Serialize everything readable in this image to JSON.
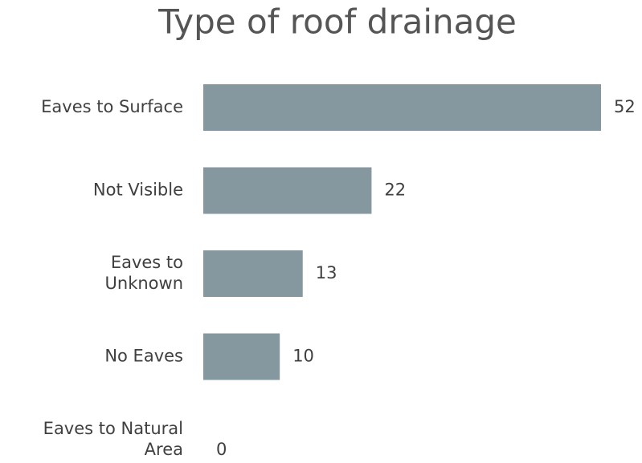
{
  "chart_data": {
    "type": "bar",
    "orientation": "horizontal",
    "title": "Type of roof drainage",
    "categories": [
      "Eaves to Surface",
      "Not Visible",
      "Eaves to\nUnknown",
      "No Eaves",
      "Eaves to Natural\nArea"
    ],
    "values": [
      52,
      22,
      13,
      10,
      0
    ],
    "color": "#85979f"
  }
}
